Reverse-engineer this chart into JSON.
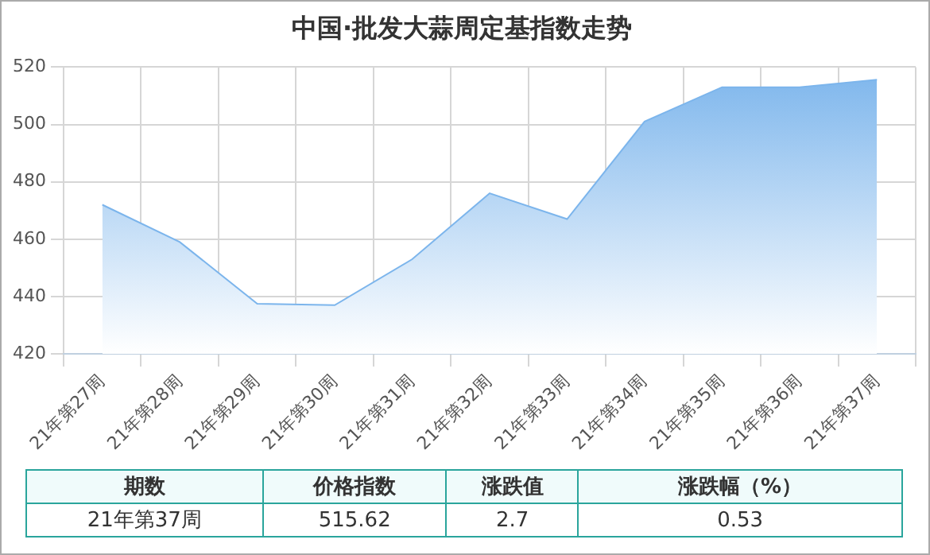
{
  "chart_data": {
    "type": "area",
    "title": "中国·批发大蒜周定基指数走势",
    "categories": [
      "21年第27周",
      "21年第28周",
      "21年第29周",
      "21年第30周",
      "21年第31周",
      "21年第32周",
      "21年第33周",
      "21年第34周",
      "21年第35周",
      "21年第36周",
      "21年第37周"
    ],
    "series": [
      {
        "color": "#7cb5ec",
        "values": [
          472,
          459,
          437.5,
          437,
          453,
          476,
          467,
          501,
          513,
          513,
          515.62
        ]
      }
    ],
    "ylim": [
      420,
      520
    ],
    "yticks": [
      420,
      440,
      460,
      480,
      500,
      520
    ],
    "grid": true,
    "legend": false,
    "marker": "none",
    "annotations": [
      "期数",
      "价格指数",
      "涨跌值",
      "涨跌幅（%）",
      "21年第37周",
      "515.62",
      "2.7",
      "0.53"
    ]
  }
}
